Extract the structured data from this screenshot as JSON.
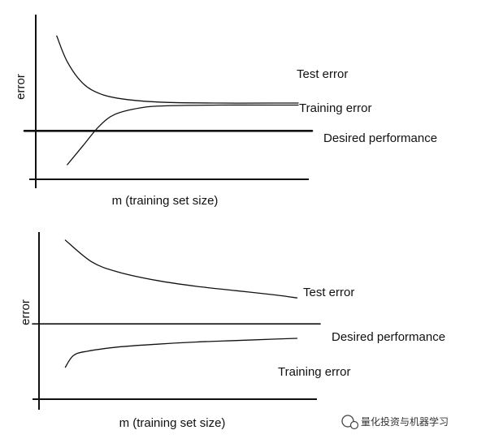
{
  "chart_data": [
    {
      "type": "line",
      "title": "",
      "xlabel": "m (training set size)",
      "ylabel": "error",
      "grid": false,
      "series": [
        {
          "name": "Test error",
          "x": [
            0.08,
            0.12,
            0.18,
            0.25,
            0.35,
            0.5,
            0.7,
            0.9,
            1.0
          ],
          "values": [
            0.95,
            0.76,
            0.6,
            0.52,
            0.48,
            0.46,
            0.455,
            0.455,
            0.455
          ]
        },
        {
          "name": "Training error",
          "x": [
            0.12,
            0.18,
            0.24,
            0.3,
            0.4,
            0.5,
            0.7,
            0.9,
            1.0
          ],
          "values": [
            0.0,
            0.14,
            0.28,
            0.37,
            0.42,
            0.435,
            0.44,
            0.44,
            0.44
          ]
        },
        {
          "name": "Desired performance",
          "x": [
            0.0,
            1.0
          ],
          "values": [
            0.25,
            0.25
          ]
        }
      ]
    },
    {
      "type": "line",
      "title": "",
      "xlabel": "m (training set size)",
      "ylabel": "error",
      "grid": false,
      "series": [
        {
          "name": "Test error",
          "x": [
            0.1,
            0.2,
            0.3,
            0.45,
            0.6,
            0.75,
            0.9,
            0.98
          ],
          "values": [
            1.0,
            0.85,
            0.78,
            0.72,
            0.68,
            0.65,
            0.62,
            0.6
          ]
        },
        {
          "name": "Training error",
          "x": [
            0.1,
            0.13,
            0.18,
            0.3,
            0.45,
            0.6,
            0.75,
            0.9,
            0.98
          ],
          "values": [
            0.12,
            0.2,
            0.23,
            0.26,
            0.28,
            0.295,
            0.305,
            0.315,
            0.32
          ]
        },
        {
          "name": "Desired performance",
          "x": [
            0.0,
            1.0
          ],
          "values": [
            0.42,
            0.42
          ]
        }
      ]
    }
  ],
  "watermark": {
    "text": "量化投资与机器学习"
  }
}
